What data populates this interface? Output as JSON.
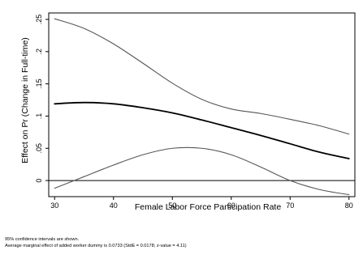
{
  "chart_data": {
    "type": "line",
    "xlabel": "Female Labor Force Participation Rate",
    "ylabel": "Effect on Pr (Change in Full-time)",
    "xlim": [
      29,
      81
    ],
    "ylim": [
      -0.025,
      0.26
    ],
    "x_ticks": [
      30,
      40,
      50,
      60,
      70,
      80
    ],
    "y_ticks": [
      0,
      0.05,
      0.1,
      0.15,
      0.2,
      0.25
    ],
    "x_tick_labels": [
      "30",
      "40",
      "50",
      "60",
      "70",
      "80"
    ],
    "y_tick_labels": [
      "0",
      ".05",
      ".1",
      ".15",
      ".2",
      ".25"
    ],
    "reference_line_y": 0,
    "grid": false,
    "legend": "none",
    "series": [
      {
        "role": "estimate",
        "color": "#000000",
        "x": [
          30,
          35,
          40,
          45,
          50,
          55,
          60,
          65,
          70,
          75,
          80
        ],
        "y": [
          0.119,
          0.121,
          0.119,
          0.113,
          0.105,
          0.094,
          0.082,
          0.07,
          0.057,
          0.044,
          0.034
        ]
      },
      {
        "role": "upper-ci",
        "color": "#555555",
        "x": [
          30,
          35,
          40,
          45,
          50,
          55,
          60,
          65,
          70,
          75,
          80
        ],
        "y": [
          0.251,
          0.236,
          0.212,
          0.182,
          0.151,
          0.126,
          0.111,
          0.104,
          0.095,
          0.085,
          0.072
        ]
      },
      {
        "role": "lower-ci",
        "color": "#555555",
        "x": [
          30,
          35,
          40,
          45,
          50,
          55,
          60,
          65,
          70,
          75,
          80
        ],
        "y": [
          -0.012,
          0.006,
          0.024,
          0.04,
          0.05,
          0.05,
          0.04,
          0.021,
          0.0,
          -0.014,
          -0.022
        ]
      }
    ],
    "notes": [
      "95% confidence intervals are shown.",
      "Average marginal effect of added worker dummy is 0.0733 (StdE = 0.0178; z-value = 4.11)"
    ]
  }
}
